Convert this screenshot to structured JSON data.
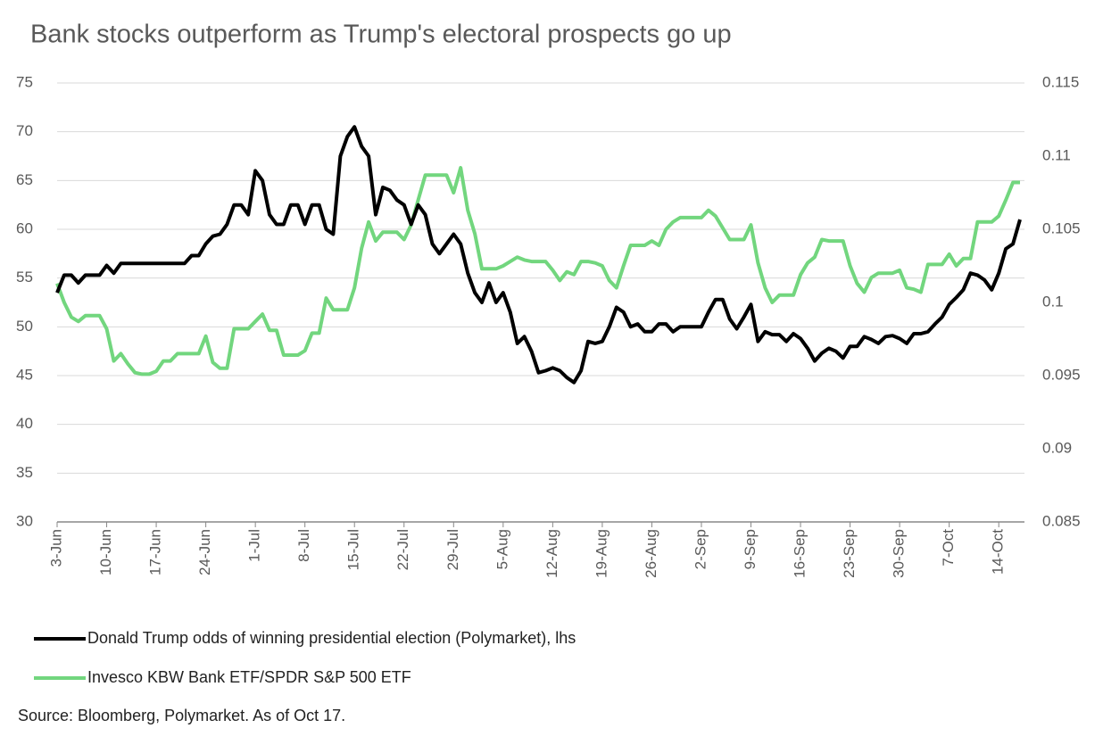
{
  "chart_data": {
    "type": "line",
    "title": "Bank stocks outperform as Trump's electoral prospects go up",
    "source": "Source: Bloomberg, Polymarket. As of Oct 17.",
    "categories": [
      "3-Jun",
      null,
      null,
      null,
      null,
      null,
      null,
      "10-Jun",
      null,
      null,
      null,
      null,
      null,
      null,
      "17-Jun",
      null,
      null,
      null,
      null,
      null,
      null,
      "24-Jun",
      null,
      null,
      null,
      null,
      null,
      null,
      "1-Jul",
      null,
      null,
      null,
      null,
      null,
      null,
      "8-Jul",
      null,
      null,
      null,
      null,
      null,
      null,
      "15-Jul",
      null,
      null,
      null,
      null,
      null,
      null,
      "22-Jul",
      null,
      null,
      null,
      null,
      null,
      null,
      "29-Jul",
      null,
      null,
      null,
      null,
      null,
      null,
      "5-Aug",
      null,
      null,
      null,
      null,
      null,
      null,
      "12-Aug",
      null,
      null,
      null,
      null,
      null,
      null,
      "19-Aug",
      null,
      null,
      null,
      null,
      null,
      null,
      "26-Aug",
      null,
      null,
      null,
      null,
      null,
      null,
      "2-Sep",
      null,
      null,
      null,
      null,
      null,
      null,
      "9-Sep",
      null,
      null,
      null,
      null,
      null,
      null,
      "16-Sep",
      null,
      null,
      null,
      null,
      null,
      null,
      "23-Sep",
      null,
      null,
      null,
      null,
      null,
      null,
      "30-Sep",
      null,
      null,
      null,
      null,
      null,
      null,
      "7-Oct",
      null,
      null,
      null,
      null,
      null,
      null,
      "14-Oct",
      null,
      null,
      null
    ],
    "series": [
      {
        "name": "Donald Trump odds of winning presidential election (Polymarket), lhs",
        "color": "#000000",
        "axis": "y",
        "values": [
          53.5,
          55.3,
          55.3,
          54.5,
          55.3,
          55.3,
          55.3,
          56.3,
          55.5,
          56.5,
          56.5,
          56.5,
          56.5,
          56.5,
          56.5,
          56.5,
          56.5,
          56.5,
          56.5,
          57.3,
          57.3,
          58.5,
          59.3,
          59.5,
          60.5,
          62.5,
          62.5,
          61.5,
          66,
          65,
          61.5,
          60.5,
          60.5,
          62.5,
          62.5,
          60.5,
          62.5,
          62.5,
          60,
          59.5,
          67.5,
          69.5,
          70.5,
          68.5,
          67.5,
          61.5,
          64.3,
          64,
          63,
          62.5,
          60.5,
          62.5,
          61.5,
          58.5,
          57.5,
          58.5,
          59.5,
          58.5,
          55.5,
          53.5,
          52.5,
          54.5,
          52.5,
          53.5,
          51.5,
          48.3,
          49,
          47.5,
          45.3,
          45.5,
          45.8,
          45.5,
          44.8,
          44.3,
          45.5,
          48.5,
          48.3,
          48.5,
          50,
          52,
          51.5,
          50,
          50.3,
          49.5,
          49.5,
          50.3,
          50.3,
          49.5,
          50,
          50,
          50,
          50,
          51.5,
          52.8,
          52.8,
          50.8,
          49.8,
          51,
          52.3,
          48.5,
          49.5,
          49.2,
          49.2,
          48.5,
          49.3,
          48.8,
          47.8,
          46.5,
          47.3,
          47.8,
          47.5,
          46.8,
          48,
          48,
          49,
          48.7,
          48.3,
          49,
          49.1,
          48.8,
          48.3,
          49.3,
          49.3,
          49.5,
          50.3,
          51,
          52.3,
          53,
          53.8,
          55.5,
          55.3,
          54.8,
          53.8,
          55.5,
          58,
          58.5,
          61
        ]
      },
      {
        "name": "Invesco KBW Bank ETF/SPDR S&P 500 ETF",
        "color": "#72d67e",
        "axis": "y2",
        "values": [
          0.1013,
          0.1,
          0.099,
          0.0987,
          0.0991,
          0.0991,
          0.0991,
          0.0982,
          0.096,
          0.0965,
          0.0958,
          0.0952,
          0.0951,
          0.0951,
          0.0953,
          0.096,
          0.096,
          0.0965,
          0.0965,
          0.0965,
          0.0965,
          0.0977,
          0.0959,
          0.0955,
          0.0955,
          0.0982,
          0.0982,
          0.0982,
          0.0987,
          0.0992,
          0.0981,
          0.0981,
          0.0964,
          0.0964,
          0.0964,
          0.0967,
          0.0979,
          0.0979,
          0.1003,
          0.0995,
          0.0995,
          0.0995,
          0.101,
          0.1037,
          0.1055,
          0.1042,
          0.1048,
          0.1048,
          0.1048,
          0.1043,
          0.1053,
          0.107,
          0.1087,
          0.1087,
          0.1087,
          0.1087,
          0.1075,
          0.1092,
          0.1063,
          0.1047,
          0.1023,
          0.1023,
          0.1023,
          0.1025,
          0.1028,
          0.1031,
          0.1029,
          0.1028,
          0.1028,
          0.1028,
          0.1022,
          0.1015,
          0.1021,
          0.1019,
          0.1028,
          0.1028,
          0.1027,
          0.1025,
          0.1015,
          0.101,
          0.1025,
          0.1039,
          0.1039,
          0.1039,
          0.1042,
          0.1039,
          0.105,
          0.1055,
          0.1058,
          0.1058,
          0.1058,
          0.1058,
          0.1063,
          0.1059,
          0.1051,
          0.1043,
          0.1043,
          0.1043,
          0.1053,
          0.1027,
          0.101,
          0.1,
          0.1005,
          0.1005,
          0.1005,
          0.1019,
          0.1027,
          0.1031,
          0.1043,
          0.1042,
          0.1042,
          0.1042,
          0.1025,
          0.1013,
          0.1007,
          0.1017,
          0.102,
          0.102,
          0.102,
          0.1022,
          0.101,
          0.1009,
          0.1007,
          0.1026,
          0.1026,
          0.1026,
          0.1033,
          0.1025,
          0.103,
          0.103,
          0.1055,
          0.1055,
          0.1055,
          0.1059,
          0.107,
          0.1082,
          0.1082
        ]
      }
    ],
    "ylim": [
      30,
      75
    ],
    "yticks": [
      30,
      35,
      40,
      45,
      50,
      55,
      60,
      65,
      70,
      75
    ],
    "y2lim": [
      0.085,
      0.115
    ],
    "y2ticks": [
      0.085,
      0.09,
      0.095,
      0.1,
      0.105,
      0.11,
      0.115
    ],
    "grid": true
  }
}
